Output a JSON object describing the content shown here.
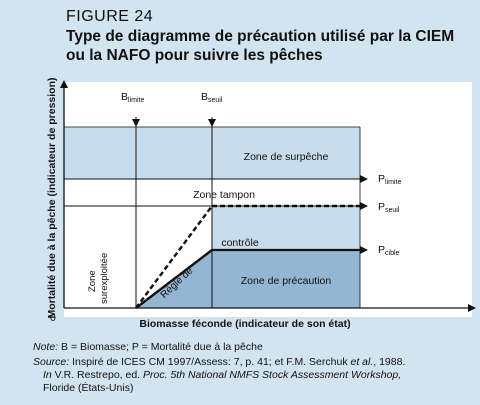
{
  "figure": {
    "label": "FIGURE 24",
    "title": "Type de diagramme de précaution utilisé par la CIEM ou la NAFO pour suivre les pêches"
  },
  "axes": {
    "y_label": "Mortalité due à la pêche (indicateur de pression)",
    "x_label": "Biomasse féconde (indicateur de son état)",
    "origin": "0"
  },
  "markers": {
    "b_limite": {
      "main": "B",
      "sub": "limite"
    },
    "b_seuil": {
      "main": "B",
      "sub": "seuil"
    },
    "p_limite": {
      "main": "P",
      "sub": "limite"
    },
    "p_seuil": {
      "main": "P",
      "sub": "seuil"
    },
    "p_cible": {
      "main": "P",
      "sub": "cible"
    }
  },
  "zones": {
    "surpeche": "Zone de surpêche",
    "tampon": "Zone tampon",
    "precaution": "Zone de précaution",
    "sous_exploitee_line1": "Zone",
    "sous_exploitee_line2": "surexploitée",
    "regle_part1": "Règle de",
    "regle_part2": "contrôle"
  },
  "notes": {
    "note_label": "Note:",
    "note_text": "B = Biomasse; P = Mortalité due à la pêche",
    "source_label": "Source:",
    "source_line1_a": "Inspiré de ICES CM 1997/Assess: 7, p. 41; et F.M. Serchuk ",
    "source_line1_etal": "et al.",
    "source_line1_b": ", 1988.",
    "source_line2_a": "In",
    "source_line2_b": " V.R. Restrepo, ed. ",
    "source_line2_c": "Proc. 5th National NMFS Stock Assessment Workshop,",
    "source_line3": "Floride (États-Unis)"
  },
  "colors": {
    "background": "#d3e4f1",
    "plot_area": "#ffffff",
    "zone_light": "#c7dcec",
    "zone_medium": "#93b6d3"
  }
}
